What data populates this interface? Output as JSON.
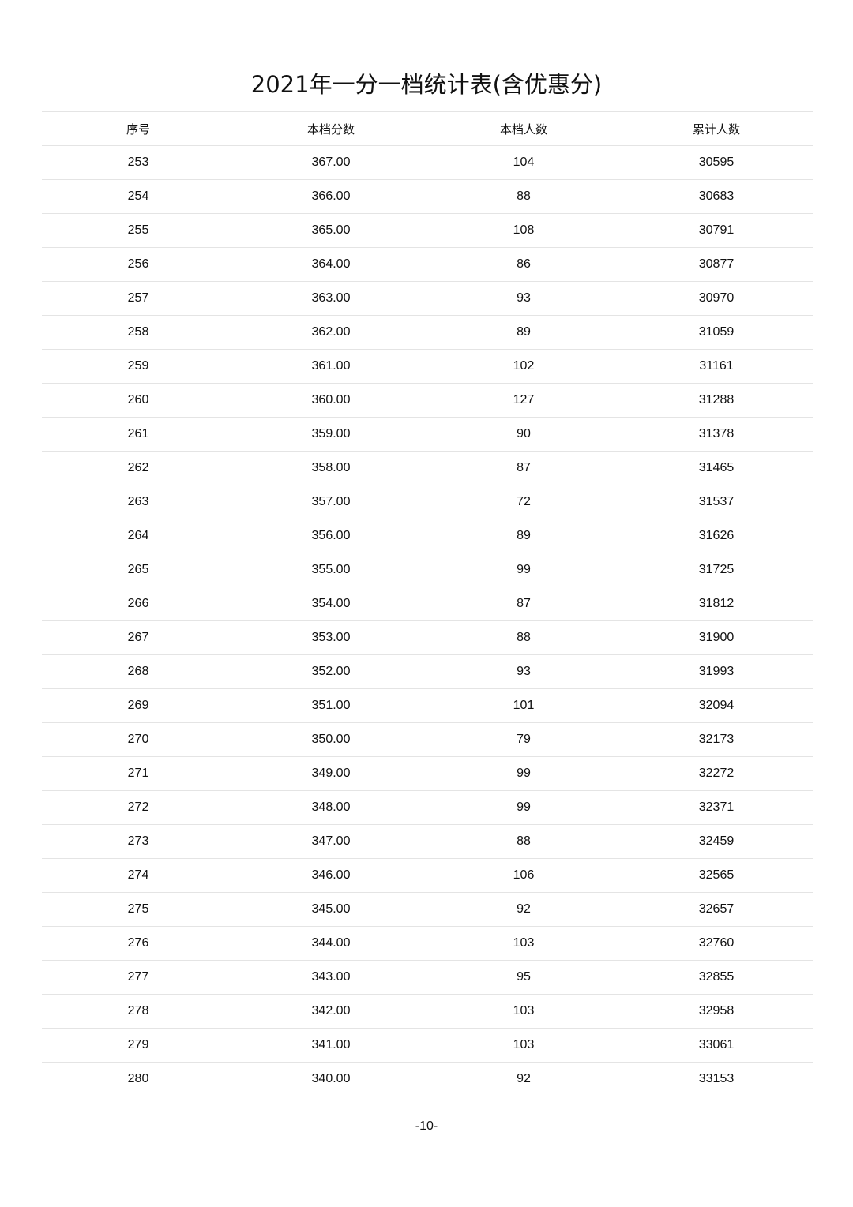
{
  "title": "2021年一分一档统计表(含优惠分)",
  "headers": [
    "序号",
    "本档分数",
    "本档人数",
    "累计人数"
  ],
  "rows": [
    [
      "253",
      "367.00",
      "104",
      "30595"
    ],
    [
      "254",
      "366.00",
      "88",
      "30683"
    ],
    [
      "255",
      "365.00",
      "108",
      "30791"
    ],
    [
      "256",
      "364.00",
      "86",
      "30877"
    ],
    [
      "257",
      "363.00",
      "93",
      "30970"
    ],
    [
      "258",
      "362.00",
      "89",
      "31059"
    ],
    [
      "259",
      "361.00",
      "102",
      "31161"
    ],
    [
      "260",
      "360.00",
      "127",
      "31288"
    ],
    [
      "261",
      "359.00",
      "90",
      "31378"
    ],
    [
      "262",
      "358.00",
      "87",
      "31465"
    ],
    [
      "263",
      "357.00",
      "72",
      "31537"
    ],
    [
      "264",
      "356.00",
      "89",
      "31626"
    ],
    [
      "265",
      "355.00",
      "99",
      "31725"
    ],
    [
      "266",
      "354.00",
      "87",
      "31812"
    ],
    [
      "267",
      "353.00",
      "88",
      "31900"
    ],
    [
      "268",
      "352.00",
      "93",
      "31993"
    ],
    [
      "269",
      "351.00",
      "101",
      "32094"
    ],
    [
      "270",
      "350.00",
      "79",
      "32173"
    ],
    [
      "271",
      "349.00",
      "99",
      "32272"
    ],
    [
      "272",
      "348.00",
      "99",
      "32371"
    ],
    [
      "273",
      "347.00",
      "88",
      "32459"
    ],
    [
      "274",
      "346.00",
      "106",
      "32565"
    ],
    [
      "275",
      "345.00",
      "92",
      "32657"
    ],
    [
      "276",
      "344.00",
      "103",
      "32760"
    ],
    [
      "277",
      "343.00",
      "95",
      "32855"
    ],
    [
      "278",
      "342.00",
      "103",
      "32958"
    ],
    [
      "279",
      "341.00",
      "103",
      "33061"
    ],
    [
      "280",
      "340.00",
      "92",
      "33153"
    ]
  ],
  "page_number": "-10-"
}
